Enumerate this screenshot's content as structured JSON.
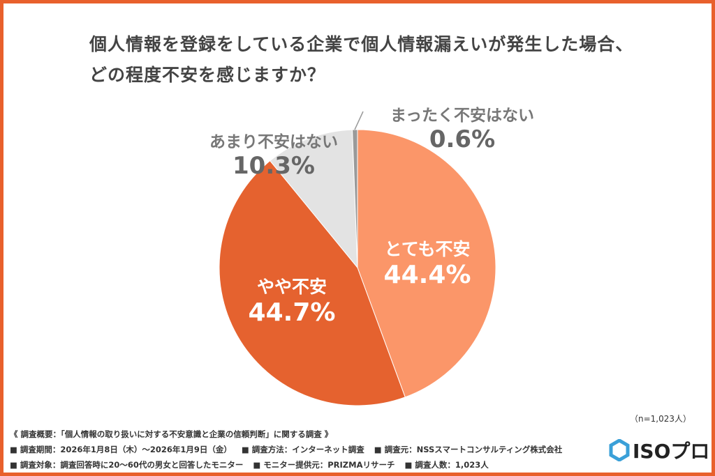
{
  "chart_data": {
    "type": "pie",
    "title": [
      "個人情報を登録をしている企業で個人情報漏えいが発生した場合、",
      "どの程度不安を感じますか？"
    ],
    "slices": [
      {
        "label": "とても不安",
        "value": 44.4,
        "display": "44.4%",
        "color": "#fb9669"
      },
      {
        "label": "やや不安",
        "value": 44.7,
        "display": "44.7%",
        "color": "#e5622f"
      },
      {
        "label": "あまり不安はない",
        "value": 10.3,
        "display": "10.3%",
        "color": "#e3e3e3"
      },
      {
        "label": "まったく不安はない",
        "value": 0.6,
        "display": "0.6%",
        "color": "#9a9a9a"
      }
    ],
    "start": "top",
    "direction": "clockwise"
  },
  "n_label": "（n=1,023人）",
  "footer": {
    "line1": "《 調査概要：「個人情報の取り扱いに対する不安意識と企業の信頼判断」に関する調査 》",
    "line2": [
      "■ 調査期間：2026年1月8日（木）～2026年1月9日（金）",
      "■ 調査方法：インターネット調査",
      "■ 調査元：NSSスマートコンサルティング株式会社"
    ],
    "line3": [
      "■ 調査対象：調査回答時に20～60代の男女と回答したモニター",
      "■ モニター提供元：PRIZMAリサーチ",
      "■ 調査人数：1,023人"
    ]
  },
  "logo": "ISOプロ",
  "colors": {
    "border": "#e8602c",
    "logo_icon": "#3aa0d8"
  }
}
